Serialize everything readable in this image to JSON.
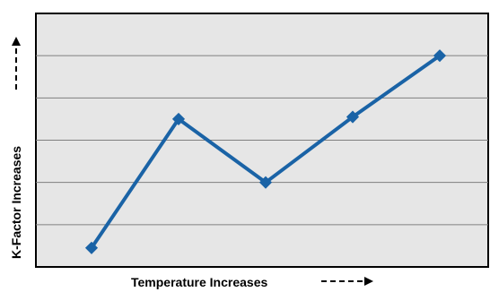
{
  "chart_data": {
    "type": "line",
    "xlabel": "Temperature Increases",
    "ylabel": "K-Factor Increases",
    "x": [
      1,
      2,
      3,
      4,
      5
    ],
    "series": [
      {
        "values": [
          0.45,
          3.5,
          2.0,
          3.55,
          5.0
        ]
      }
    ],
    "ylim": [
      0,
      6
    ],
    "grid": true,
    "colors": {
      "line": "#1a63a6",
      "plot_bg": "#e6e6e6",
      "grid": "#7f7f7f",
      "frame": "#000000"
    },
    "x_arrow": "dashed-arrow-right",
    "y_arrow": "dashed-arrow-up"
  }
}
